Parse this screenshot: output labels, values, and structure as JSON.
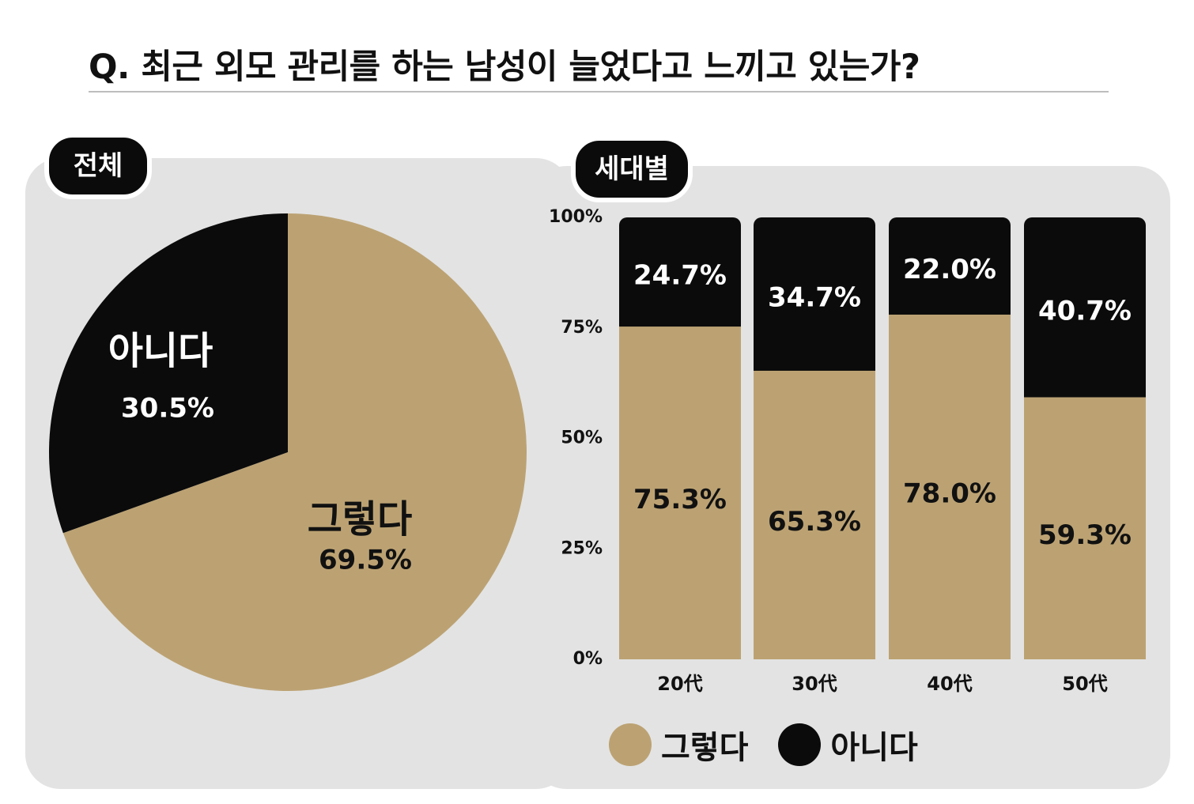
{
  "title": "Q. 최근 외모 관리를 하는 남성이 늘었다고 느끼고 있는가?",
  "colors": {
    "yes": "#bca273",
    "no": "#0b0b0b",
    "panel": "#e3e3e3"
  },
  "overall": {
    "tag": "전체",
    "chart_data": {
      "type": "pie",
      "slices": [
        {
          "label": "그렇다",
          "value": 69.5,
          "value_label": "69.5%"
        },
        {
          "label": "아니다",
          "value": 30.5,
          "value_label": "30.5%"
        }
      ]
    }
  },
  "by_generation": {
    "tag": "세대별",
    "chart_data": {
      "type": "bar",
      "stacked": true,
      "categories": [
        "20代",
        "30代",
        "40代",
        "50代"
      ],
      "series": [
        {
          "name": "그렇다",
          "values": [
            75.3,
            65.3,
            78.0,
            59.3
          ],
          "labels": [
            "75.3%",
            "65.3%",
            "78.0%",
            "59.3%"
          ]
        },
        {
          "name": "아니다",
          "values": [
            24.7,
            34.7,
            22.0,
            40.7
          ],
          "labels": [
            "24.7%",
            "34.7%",
            "22.0%",
            "40.7%"
          ]
        }
      ],
      "yticks": [
        "0%",
        "25%",
        "50%",
        "75%",
        "100%"
      ],
      "ylim": [
        0,
        100
      ]
    }
  },
  "legend": [
    {
      "label": "그렇다"
    },
    {
      "label": "아니다"
    }
  ]
}
